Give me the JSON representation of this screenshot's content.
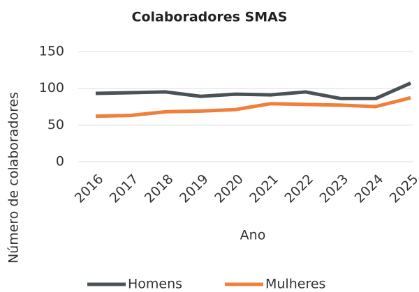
{
  "chart_data": {
    "type": "line",
    "title": "Colaboradores SMAS",
    "x_label": "Ano",
    "y_label": "Número de colaboradores",
    "categories": [
      "2016",
      "2017",
      "2018",
      "2019",
      "2020",
      "2021",
      "2022",
      "2023",
      "2024",
      "2025"
    ],
    "series": [
      {
        "name": "Homens",
        "color": "#4a5256",
        "values": [
          93,
          94,
          95,
          89,
          92,
          91,
          95,
          86,
          86,
          107
        ]
      },
      {
        "name": "Mulheres",
        "color": "#f07f3c",
        "values": [
          62,
          63,
          68,
          69,
          71,
          79,
          78,
          77,
          75,
          87
        ]
      }
    ],
    "ylim": [
      0,
      150
    ],
    "yticks": [
      0,
      50,
      100,
      150
    ],
    "grid": true,
    "legend": "bottom"
  }
}
